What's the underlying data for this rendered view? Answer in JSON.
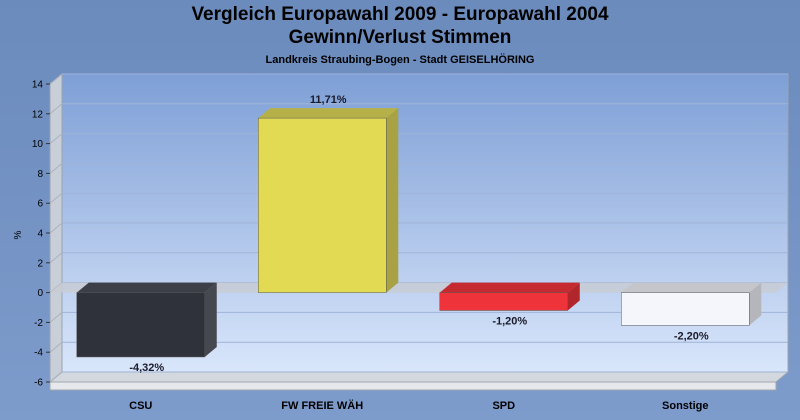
{
  "chart_data": {
    "type": "bar",
    "title": "Vergleich Europawahl 2009 - Europawahl 2004",
    "subtitle_line": "Gewinn/Verlust Stimmen",
    "subtitle": "Landkreis Straubing-Bogen - Stadt GEISELHÖRING",
    "ylabel": "%",
    "ylim": [
      -6,
      14
    ],
    "yticks": [
      14,
      12,
      10,
      8,
      6,
      4,
      2,
      0,
      -2,
      -4,
      -6
    ],
    "grid": true,
    "categories": [
      "CSU",
      "FW FREIE WÄH",
      "SPD",
      "Sonstige"
    ],
    "values": [
      -4.32,
      11.71,
      -1.2,
      -2.2
    ],
    "value_labels": [
      "-4,32%",
      "11,71%",
      "-1,20%",
      "-2,20%"
    ],
    "colors": [
      "#2f323b",
      "#e2da52",
      "#ef333a",
      "#f4f6fb"
    ],
    "side_colors": [
      "#45484f",
      "#a8a244",
      "#b0262b",
      "#b4b6bc"
    ],
    "top_colors": [
      "#3c3f47",
      "#b6b049",
      "#c52a30",
      "#c4c6cc"
    ]
  }
}
